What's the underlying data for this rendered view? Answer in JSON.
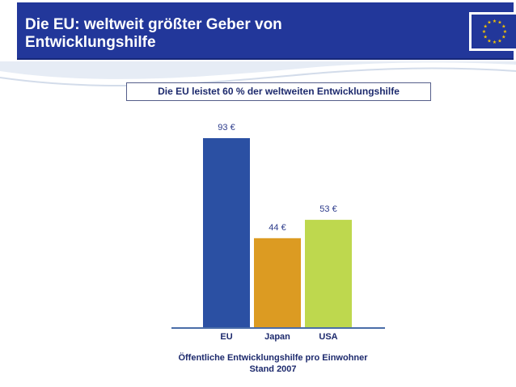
{
  "header": {
    "title": "Die EU: weltweit größter Geber von Entwicklungshilfe",
    "background_color": "#22379a",
    "flag_background": "#22379a",
    "flag_star_color": "#f5c400"
  },
  "chart_caption": "Die EU leistet 60 % der weltweiten Entwicklungshilfe",
  "footer": {
    "line1": "Öffentliche Entwicklungshilfe pro Einwohner",
    "line2": "Stand 2007"
  },
  "chart_data": {
    "type": "bar",
    "title": "Die EU leistet 60 % der weltweiten Entwicklungshilfe",
    "xlabel": "Öffentliche Entwicklungshilfe pro Einwohner",
    "ylabel": "",
    "categories": [
      "EU",
      "Japan",
      "USA"
    ],
    "values": [
      93,
      44,
      53
    ],
    "value_labels": [
      "93 €",
      "44 €",
      "53 €"
    ],
    "unit": "€",
    "ylim": [
      0,
      100
    ],
    "colors": [
      "#2b50a3",
      "#dc9b22",
      "#bed84e"
    ],
    "grid": false,
    "legend": "none"
  }
}
